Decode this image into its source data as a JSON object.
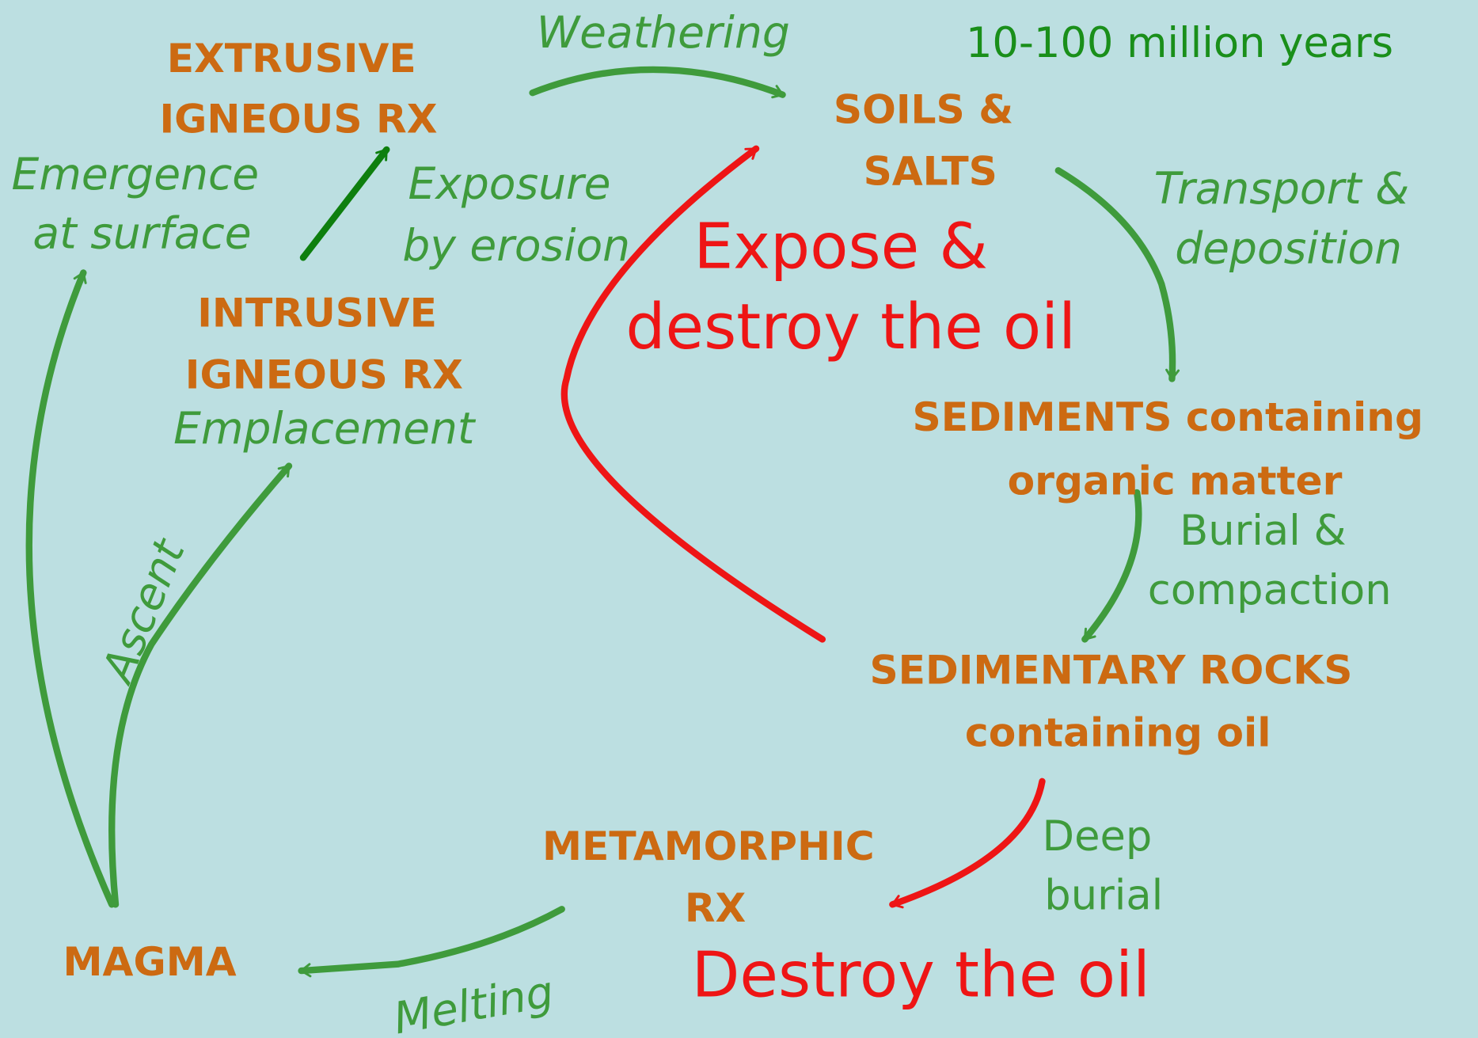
{
  "annotation": "10-100 million years",
  "nodes": {
    "extrusive": [
      "EXTRUSIVE",
      "IGNEOUS RX"
    ],
    "soils": [
      "SOILS &",
      "SALTS"
    ],
    "intrusive": [
      "INTRUSIVE",
      "IGNEOUS RX"
    ],
    "sediments": [
      "SEDIMENTS containing",
      "organic matter"
    ],
    "sedimentary": [
      "SEDIMENTARY ROCKS",
      "containing oil"
    ],
    "metamorphic": [
      "METAMORPHIC",
      "RX"
    ],
    "magma": [
      "MAGMA"
    ]
  },
  "processes": {
    "weathering": [
      "Weathering"
    ],
    "emergence": [
      "Emergence",
      "at surface"
    ],
    "exposure": [
      "Exposure",
      "by erosion"
    ],
    "transport": [
      "Transport &",
      "deposition"
    ],
    "emplacement": [
      "Emplacement"
    ],
    "burial": [
      "Burial &",
      "compaction"
    ],
    "ascent": [
      "Ascent"
    ],
    "deep_burial": [
      "Deep",
      "burial"
    ],
    "melting": [
      "Melting"
    ]
  },
  "warnings": {
    "expose": [
      "Expose &",
      "destroy the oil"
    ],
    "destroy": [
      "Destroy the oil"
    ]
  }
}
